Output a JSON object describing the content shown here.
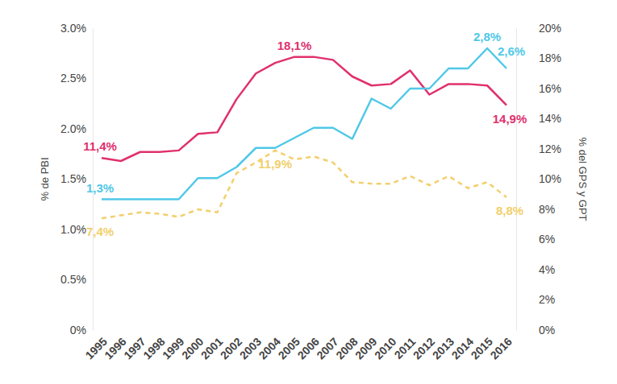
{
  "chart_data": {
    "type": "line",
    "y_label": "% de PBI",
    "y2_label": "% del GPS y GPT",
    "categories": [
      "1995",
      "1996",
      "1997",
      "1998",
      "1999",
      "2000",
      "2001",
      "2002",
      "2003",
      "2004",
      "2005",
      "2006",
      "2007",
      "2008",
      "2009",
      "2010",
      "2011",
      "2012",
      "2013",
      "2014",
      "2015",
      "2016"
    ],
    "ylim": [
      0,
      3
    ],
    "yticks": [
      {
        "value": 0,
        "label": "0%"
      },
      {
        "value": 0.5,
        "label": "0.5%"
      },
      {
        "value": 1,
        "label": "1.0%"
      },
      {
        "value": 1.5,
        "label": "1.5%"
      },
      {
        "value": 2,
        "label": "2.0%"
      },
      {
        "value": 2.5,
        "label": "2.5%"
      },
      {
        "value": 3,
        "label": "3.0%"
      }
    ],
    "y2lim": [
      0,
      20
    ],
    "y2ticks": [
      {
        "value": 0,
        "label": "0%"
      },
      {
        "value": 2,
        "label": "2%"
      },
      {
        "value": 4,
        "label": "4%"
      },
      {
        "value": 6,
        "label": "6%"
      },
      {
        "value": 8,
        "label": "8%"
      },
      {
        "value": 10,
        "label": "10%"
      },
      {
        "value": 12,
        "label": "12%"
      },
      {
        "value": 14,
        "label": "14%"
      },
      {
        "value": 16,
        "label": "16%"
      },
      {
        "value": 18,
        "label": "18%"
      },
      {
        "value": 20,
        "label": "20%"
      }
    ],
    "grid": false,
    "data_labels": true,
    "series": [
      {
        "color": "#e0306e",
        "axis": "y2",
        "line_style": "solid",
        "values": [
          11.4,
          11.2,
          11.8,
          11.8,
          11.9,
          13.0,
          13.1,
          15.3,
          17.0,
          17.7,
          18.1,
          18.1,
          17.9,
          16.8,
          16.2,
          16.3,
          17.2,
          15.6,
          16.3,
          16.3,
          16.2,
          14.9
        ],
        "value_labels": [
          "11,4%",
          null,
          null,
          null,
          null,
          null,
          null,
          null,
          null,
          null,
          "18,1%",
          null,
          null,
          null,
          null,
          null,
          null,
          null,
          null,
          null,
          null,
          "14,9%"
        ]
      },
      {
        "color": "#4fc8e8",
        "line_style": "solid",
        "values": [
          1.3,
          1.3,
          1.3,
          1.3,
          1.3,
          1.51,
          1.51,
          1.62,
          1.81,
          1.81,
          1.91,
          2.01,
          2.01,
          1.9,
          2.3,
          2.2,
          2.4,
          2.4,
          2.6,
          2.6,
          2.8,
          2.6
        ],
        "value_labels": [
          "1,3%",
          null,
          null,
          null,
          null,
          null,
          null,
          null,
          null,
          null,
          null,
          null,
          null,
          null,
          null,
          null,
          null,
          null,
          null,
          null,
          "2,8%",
          "2,6%"
        ]
      },
      {
        "color": "#f2cf6b",
        "axis": "y2",
        "line_style": "dashed",
        "values": [
          7.4,
          7.6,
          7.8,
          7.7,
          7.5,
          8.0,
          7.8,
          10.4,
          11.1,
          11.9,
          11.3,
          11.5,
          11.1,
          9.8,
          9.7,
          9.7,
          10.2,
          9.6,
          10.2,
          9.4,
          9.8,
          8.8
        ],
        "value_labels": [
          "7,4%",
          null,
          null,
          null,
          null,
          null,
          null,
          null,
          null,
          "11,9%",
          null,
          null,
          null,
          null,
          null,
          null,
          null,
          null,
          null,
          null,
          null,
          "8,8%"
        ]
      }
    ]
  }
}
